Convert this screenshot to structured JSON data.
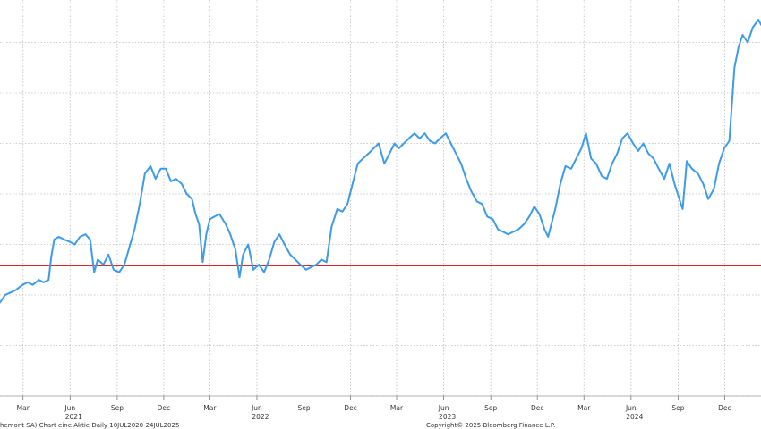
{
  "footer": {
    "left_text": "hemont SA) Chart eine Aktie  Daily 10JUL2020-24JUL2025",
    "right_text": "Copyright© 2025 Bloomberg Finance L.P."
  },
  "colors": {
    "series": "#3d9be9",
    "reference": "#d9262d",
    "grid": "#bdbdbd"
  },
  "chart_data": {
    "type": "line",
    "title": "",
    "xlabel": "",
    "ylabel": "",
    "x_type": "date",
    "xlim": [
      "2021-01-15",
      "2025-02-10"
    ],
    "ylim": [
      0,
      8
    ],
    "y_gridlines": [
      0,
      1,
      2,
      3,
      4,
      5,
      6,
      7,
      8
    ],
    "y_tick_labels_visible": false,
    "grid": true,
    "x_ticks": [
      {
        "date": "2021-03-01",
        "label": "Mar"
      },
      {
        "date": "2021-06-01",
        "label": "Jun"
      },
      {
        "date": "2021-09-01",
        "label": "Sep"
      },
      {
        "date": "2021-12-01",
        "label": "Dec"
      },
      {
        "date": "2022-03-01",
        "label": "Mar"
      },
      {
        "date": "2022-06-01",
        "label": "Jun"
      },
      {
        "date": "2022-09-01",
        "label": "Sep"
      },
      {
        "date": "2022-12-01",
        "label": "Dec"
      },
      {
        "date": "2023-03-01",
        "label": "Mar"
      },
      {
        "date": "2023-06-01",
        "label": "Jun"
      },
      {
        "date": "2023-09-01",
        "label": "Sep"
      },
      {
        "date": "2023-12-01",
        "label": "Dec"
      },
      {
        "date": "2024-03-01",
        "label": "Mar"
      },
      {
        "date": "2024-06-01",
        "label": "Jun"
      },
      {
        "date": "2024-09-01",
        "label": "Sep"
      },
      {
        "date": "2024-12-01",
        "label": "Dec"
      }
    ],
    "year_labels": [
      {
        "date": "2021-06-01",
        "label": "2021"
      },
      {
        "date": "2022-06-01",
        "label": "2022"
      },
      {
        "date": "2023-06-01",
        "label": "2023"
      },
      {
        "date": "2024-06-01",
        "label": "2024"
      }
    ],
    "reference_lines": [
      {
        "y": 2.58
      }
    ],
    "series": [
      {
        "points": [
          [
            "2021-01-15",
            1.85
          ],
          [
            "2021-01-25",
            2.0
          ],
          [
            "2021-02-05",
            2.05
          ],
          [
            "2021-02-15",
            2.1
          ],
          [
            "2021-02-28",
            2.2
          ],
          [
            "2021-03-10",
            2.25
          ],
          [
            "2021-03-20",
            2.2
          ],
          [
            "2021-04-01",
            2.3
          ],
          [
            "2021-04-10",
            2.25
          ],
          [
            "2021-04-20",
            2.3
          ],
          [
            "2021-04-25",
            2.75
          ],
          [
            "2021-05-01",
            3.1
          ],
          [
            "2021-05-10",
            3.15
          ],
          [
            "2021-05-20",
            3.1
          ],
          [
            "2021-06-01",
            3.05
          ],
          [
            "2021-06-10",
            3.0
          ],
          [
            "2021-06-20",
            3.15
          ],
          [
            "2021-07-01",
            3.2
          ],
          [
            "2021-07-10",
            3.1
          ],
          [
            "2021-07-18",
            2.45
          ],
          [
            "2021-07-25",
            2.7
          ],
          [
            "2021-08-05",
            2.6
          ],
          [
            "2021-08-15",
            2.8
          ],
          [
            "2021-08-25",
            2.5
          ],
          [
            "2021-09-05",
            2.45
          ],
          [
            "2021-09-15",
            2.6
          ],
          [
            "2021-09-25",
            2.95
          ],
          [
            "2021-10-05",
            3.3
          ],
          [
            "2021-10-15",
            3.8
          ],
          [
            "2021-10-25",
            4.4
          ],
          [
            "2021-11-05",
            4.55
          ],
          [
            "2021-11-15",
            4.3
          ],
          [
            "2021-11-25",
            4.5
          ],
          [
            "2021-12-05",
            4.5
          ],
          [
            "2021-12-15",
            4.25
          ],
          [
            "2021-12-25",
            4.3
          ],
          [
            "2022-01-05",
            4.2
          ],
          [
            "2022-01-15",
            4.0
          ],
          [
            "2022-01-25",
            3.9
          ],
          [
            "2022-02-01",
            3.6
          ],
          [
            "2022-02-08",
            3.4
          ],
          [
            "2022-02-15",
            2.65
          ],
          [
            "2022-02-22",
            3.2
          ],
          [
            "2022-03-01",
            3.5
          ],
          [
            "2022-03-10",
            3.55
          ],
          [
            "2022-03-20",
            3.6
          ],
          [
            "2022-04-01",
            3.4
          ],
          [
            "2022-04-10",
            3.2
          ],
          [
            "2022-04-20",
            2.9
          ],
          [
            "2022-04-28",
            2.35
          ],
          [
            "2022-05-05",
            2.8
          ],
          [
            "2022-05-15",
            3.0
          ],
          [
            "2022-05-25",
            2.5
          ],
          [
            "2022-06-05",
            2.6
          ],
          [
            "2022-06-15",
            2.45
          ],
          [
            "2022-06-25",
            2.7
          ],
          [
            "2022-07-05",
            3.05
          ],
          [
            "2022-07-15",
            3.2
          ],
          [
            "2022-07-25",
            3.0
          ],
          [
            "2022-08-05",
            2.8
          ],
          [
            "2022-08-15",
            2.7
          ],
          [
            "2022-08-25",
            2.6
          ],
          [
            "2022-09-05",
            2.5
          ],
          [
            "2022-09-15",
            2.55
          ],
          [
            "2022-09-25",
            2.6
          ],
          [
            "2022-10-05",
            2.7
          ],
          [
            "2022-10-15",
            2.65
          ],
          [
            "2022-10-25",
            3.35
          ],
          [
            "2022-11-05",
            3.7
          ],
          [
            "2022-11-15",
            3.65
          ],
          [
            "2022-11-25",
            3.8
          ],
          [
            "2022-12-05",
            4.2
          ],
          [
            "2022-12-15",
            4.6
          ],
          [
            "2022-12-25",
            4.7
          ],
          [
            "2023-01-05",
            4.8
          ],
          [
            "2023-01-15",
            4.9
          ],
          [
            "2023-01-25",
            5.0
          ],
          [
            "2023-02-05",
            4.6
          ],
          [
            "2023-02-15",
            4.8
          ],
          [
            "2023-02-25",
            5.0
          ],
          [
            "2023-03-05",
            4.9
          ],
          [
            "2023-03-15",
            5.0
          ],
          [
            "2023-03-25",
            5.1
          ],
          [
            "2023-04-05",
            5.2
          ],
          [
            "2023-04-15",
            5.1
          ],
          [
            "2023-04-25",
            5.2
          ],
          [
            "2023-05-05",
            5.05
          ],
          [
            "2023-05-15",
            5.0
          ],
          [
            "2023-05-25",
            5.1
          ],
          [
            "2023-06-05",
            5.2
          ],
          [
            "2023-06-15",
            5.0
          ],
          [
            "2023-06-25",
            4.8
          ],
          [
            "2023-07-05",
            4.6
          ],
          [
            "2023-07-15",
            4.3
          ],
          [
            "2023-07-25",
            4.05
          ],
          [
            "2023-08-05",
            3.85
          ],
          [
            "2023-08-15",
            3.8
          ],
          [
            "2023-08-25",
            3.55
          ],
          [
            "2023-09-05",
            3.5
          ],
          [
            "2023-09-15",
            3.3
          ],
          [
            "2023-09-25",
            3.25
          ],
          [
            "2023-10-05",
            3.2
          ],
          [
            "2023-10-15",
            3.25
          ],
          [
            "2023-10-25",
            3.3
          ],
          [
            "2023-11-05",
            3.4
          ],
          [
            "2023-11-15",
            3.55
          ],
          [
            "2023-11-25",
            3.75
          ],
          [
            "2023-12-05",
            3.6
          ],
          [
            "2023-12-15",
            3.3
          ],
          [
            "2023-12-22",
            3.15
          ],
          [
            "2024-01-05",
            3.7
          ],
          [
            "2024-01-15",
            4.2
          ],
          [
            "2024-01-25",
            4.55
          ],
          [
            "2024-02-05",
            4.5
          ],
          [
            "2024-02-15",
            4.7
          ],
          [
            "2024-02-25",
            4.9
          ],
          [
            "2024-03-05",
            5.2
          ],
          [
            "2024-03-15",
            4.7
          ],
          [
            "2024-03-25",
            4.6
          ],
          [
            "2024-04-05",
            4.35
          ],
          [
            "2024-04-15",
            4.3
          ],
          [
            "2024-04-25",
            4.6
          ],
          [
            "2024-05-05",
            4.8
          ],
          [
            "2024-05-15",
            5.1
          ],
          [
            "2024-05-25",
            5.2
          ],
          [
            "2024-06-05",
            5.0
          ],
          [
            "2024-06-15",
            4.85
          ],
          [
            "2024-06-25",
            5.0
          ],
          [
            "2024-07-05",
            4.8
          ],
          [
            "2024-07-15",
            4.7
          ],
          [
            "2024-07-25",
            4.5
          ],
          [
            "2024-08-05",
            4.3
          ],
          [
            "2024-08-15",
            4.6
          ],
          [
            "2024-08-25",
            4.2
          ],
          [
            "2024-09-05",
            3.85
          ],
          [
            "2024-09-10",
            3.7
          ],
          [
            "2024-09-18",
            4.65
          ],
          [
            "2024-09-28",
            4.5
          ],
          [
            "2024-10-10",
            4.4
          ],
          [
            "2024-10-20",
            4.2
          ],
          [
            "2024-10-30",
            3.9
          ],
          [
            "2024-11-10",
            4.1
          ],
          [
            "2024-11-20",
            4.6
          ],
          [
            "2024-11-30",
            4.9
          ],
          [
            "2024-12-10",
            5.05
          ],
          [
            "2024-12-14",
            5.6
          ],
          [
            "2024-12-20",
            6.5
          ],
          [
            "2024-12-28",
            6.9
          ],
          [
            "2025-01-05",
            7.15
          ],
          [
            "2025-01-15",
            7.0
          ],
          [
            "2025-01-25",
            7.3
          ],
          [
            "2025-02-05",
            7.45
          ],
          [
            "2025-02-10",
            7.35
          ]
        ]
      }
    ]
  }
}
